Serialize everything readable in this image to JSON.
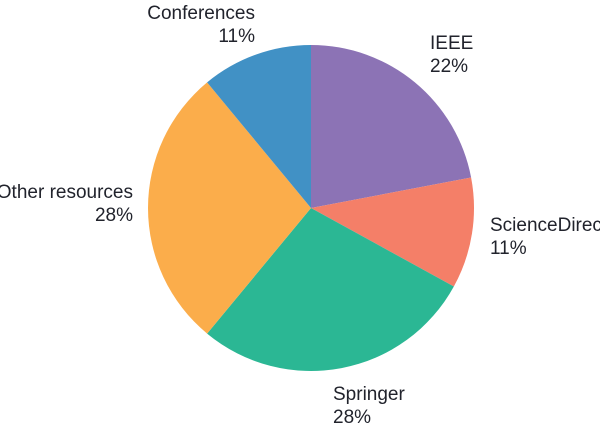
{
  "chart_data": {
    "type": "pie",
    "title": "",
    "start_angle_deg": -90,
    "direction": "clockwise",
    "legend_position": "none",
    "labels_position": "outside",
    "background_color": "#ffffff",
    "label_text_color": "#21232c",
    "slices": [
      {
        "name": "ieee",
        "label": "IEEE",
        "value": 22,
        "pct_label": "22%",
        "color": "#8c73b5"
      },
      {
        "name": "sciencedirect",
        "label": "ScienceDirect",
        "value": 11,
        "pct_label": "11%",
        "color": "#f47f68"
      },
      {
        "name": "springer",
        "label": "Springer",
        "value": 28,
        "pct_label": "28%",
        "color": "#2bb794"
      },
      {
        "name": "other-resources",
        "label": "Other resources",
        "value": 28,
        "pct_label": "28%",
        "color": "#fbad4b"
      },
      {
        "name": "conferences",
        "label": "Conferences",
        "value": 11,
        "pct_label": "11%",
        "color": "#4191c5"
      }
    ]
  }
}
